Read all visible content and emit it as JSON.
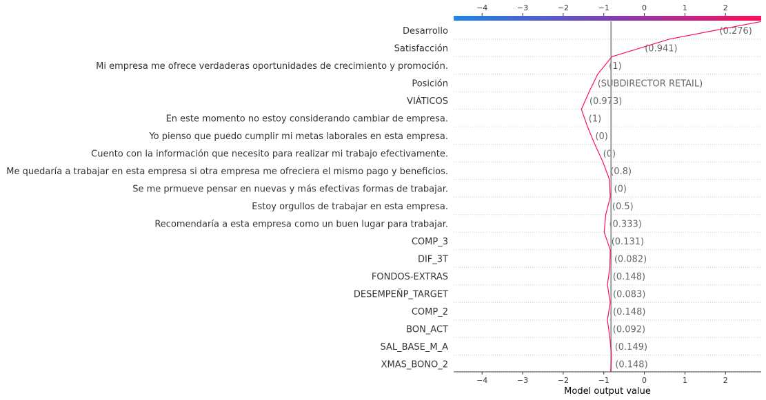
{
  "chart_data": {
    "type": "line",
    "xlabel": "Model output value",
    "xlim": [
      -4.7,
      2.88
    ],
    "x_ticks": [
      -4,
      -3,
      -2,
      -1,
      0,
      1,
      2
    ],
    "x_tick_labels": [
      "−4",
      "−3",
      "−2",
      "−1",
      "0",
      "1",
      "2"
    ],
    "base_value": -0.82,
    "grid": "dotted row separators",
    "colors": {
      "line": "#ff0d57",
      "base_line": "#999999",
      "gradient_low": "#1e88e5",
      "gradient_mid": "#7b3fb5",
      "gradient_high": "#ff0d57"
    },
    "features": [
      {
        "name": "Desarrollo",
        "value": "(0.276)",
        "x": 2.88
      },
      {
        "name": "Satisfacción",
        "value": "(0.941)",
        "x": 0.62
      },
      {
        "name": "Mi empresa me ofrece verdaderas oportunidades de crecimiento y promoción.",
        "value": "(1)",
        "x": -0.8
      },
      {
        "name": "Posición",
        "value": "(SUBDIRECTOR RETAIL)",
        "x": -1.15
      },
      {
        "name": "VIÁTICOS",
        "value": "(0.973)",
        "x": -1.36
      },
      {
        "name": "En este momento no estoy considerando cambiar de empresa.",
        "value": "(1)",
        "x": -1.55
      },
      {
        "name": "Yo pienso que puedo cumplir mi metas laborales en esta empresa.",
        "value": "(0)",
        "x": -1.4
      },
      {
        "name": "Cuento con la información que necesito para realizar mi trabajo efectivamente.",
        "value": "(0)",
        "x": -1.22
      },
      {
        "name": "Me quedaría a trabajar en esta empresa si otra empresa me ofreciera el mismo pago y beneficios.",
        "value": "(0.8)",
        "x": -1.02
      },
      {
        "name": "Se me prmueve pensar en nuevas y más efectivas formas de trabajar.",
        "value": "(0)",
        "x": -0.86
      },
      {
        "name": "Estoy orgullos de trabajar en esta empresa.",
        "value": "(0.5)",
        "x": -0.84
      },
      {
        "name": "Recomendaría a esta empresa como un buen lugar para trabajar.",
        "value": "(0.333)",
        "x": -0.95
      },
      {
        "name": "COMP_3",
        "value": "(0.131)",
        "x": -0.99
      },
      {
        "name": "DIF_3T",
        "value": "(0.082)",
        "x": -0.84
      },
      {
        "name": "FONDOS-EXTRAS",
        "value": "(0.148)",
        "x": -0.85
      },
      {
        "name": "DESEMPEÑP_TARGET",
        "value": "(0.083)",
        "x": -0.91
      },
      {
        "name": "COMP_2",
        "value": "(0.148)",
        "x": -0.84
      },
      {
        "name": "BON_ACT",
        "value": "(0.092)",
        "x": -0.91
      },
      {
        "name": "SAL_BASE_M_A",
        "value": "(0.149)",
        "x": -0.85
      },
      {
        "name": "XMAS_BONO_2",
        "value": "(0.148)",
        "x": -0.81
      }
    ],
    "start_x": -0.83
  }
}
